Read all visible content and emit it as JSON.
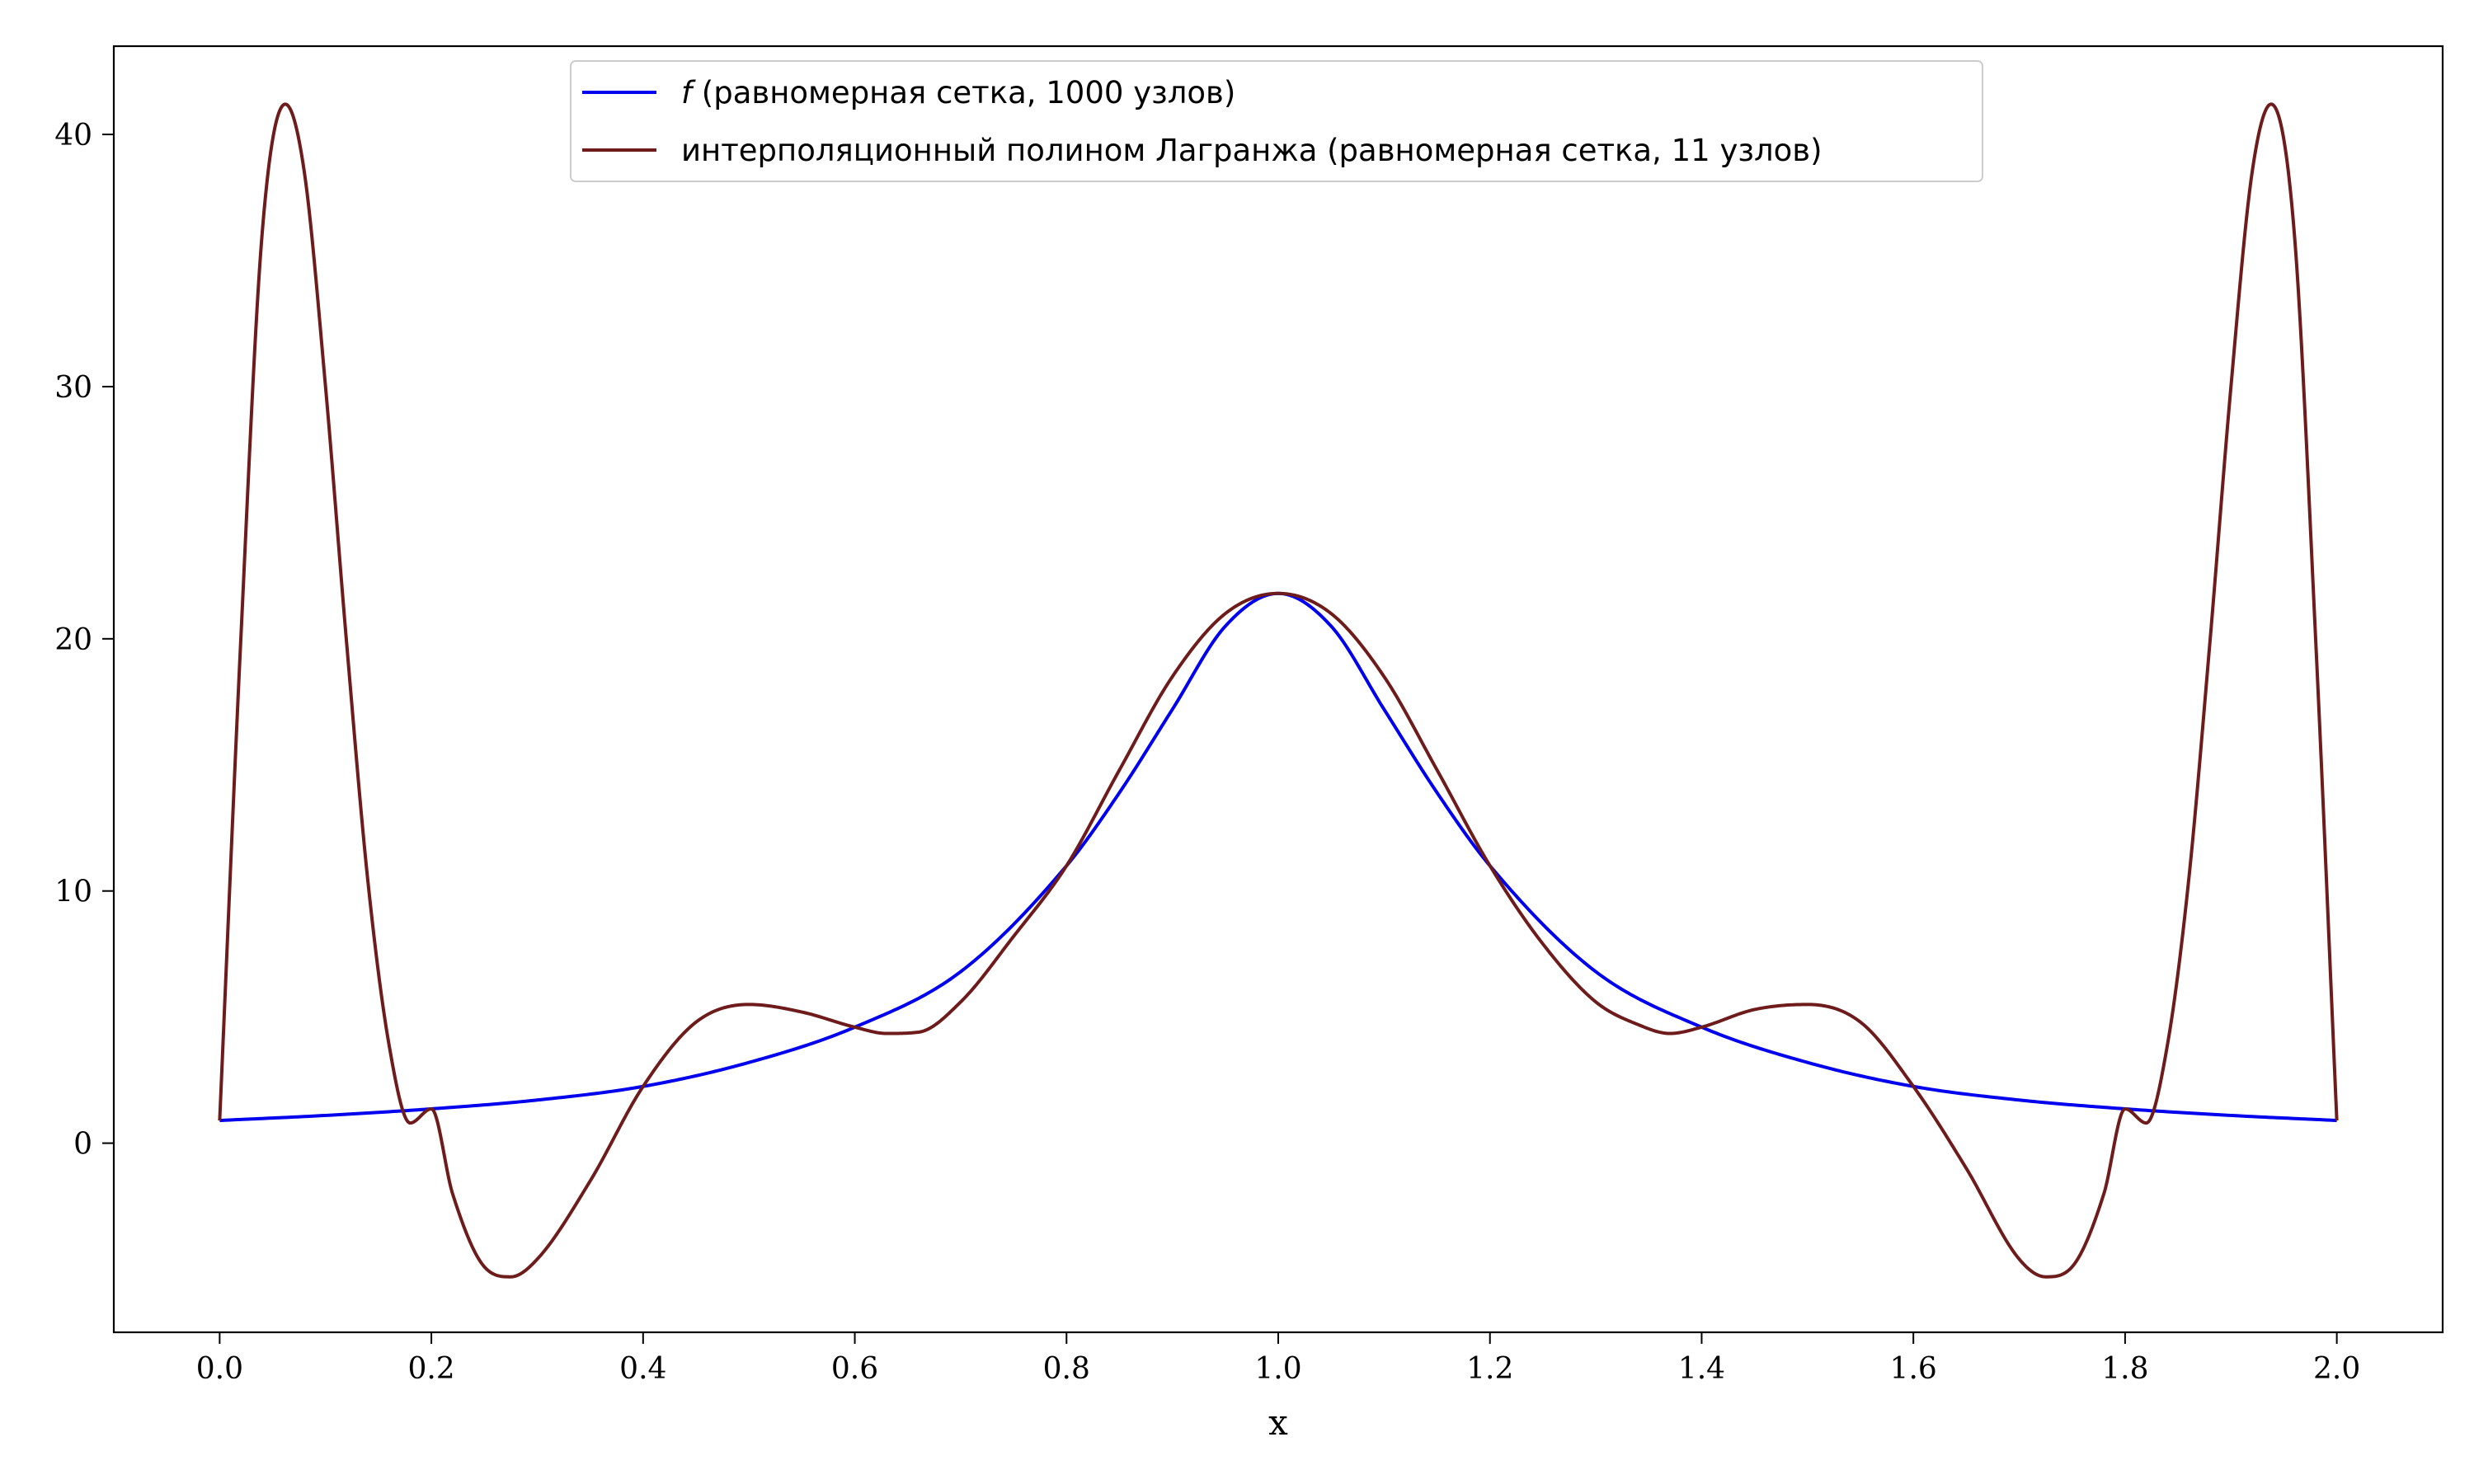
{
  "chart_data": {
    "type": "line",
    "title": "",
    "xlabel": "x",
    "ylabel": "",
    "xlim": [
      -0.1,
      2.1
    ],
    "ylim": [
      -7.5,
      43.5
    ],
    "xticks": [
      0.0,
      0.2,
      0.4,
      0.6,
      0.8,
      1.0,
      1.2,
      1.4,
      1.6,
      1.8,
      2.0
    ],
    "xtick_labels": [
      "0.0",
      "0.2",
      "0.4",
      "0.6",
      "0.8",
      "1.0",
      "1.2",
      "1.4",
      "1.6",
      "1.8",
      "2.0"
    ],
    "yticks": [
      0,
      10,
      20,
      30,
      40
    ],
    "ytick_labels": [
      "0",
      "10",
      "20",
      "30",
      "40"
    ],
    "grid": false,
    "legend_position": "top-center",
    "series": [
      {
        "name": "f (равномерная сетка, 1000 узлов)",
        "legend_symbol": "f",
        "legend_rest": " (равномерная сетка, 1000 узлов)",
        "color": "#0000ee",
        "x": [
          0.0,
          0.1,
          0.2,
          0.3,
          0.4,
          0.5,
          0.6,
          0.7,
          0.8,
          0.85,
          0.9,
          0.95,
          1.0,
          1.05,
          1.1,
          1.15,
          1.2,
          1.3,
          1.4,
          1.5,
          1.6,
          1.7,
          1.8,
          1.9,
          2.0
        ],
        "y": [
          0.9,
          1.1,
          1.36,
          1.71,
          2.25,
          3.2,
          4.6,
          6.8,
          11.0,
          13.9,
          17.2,
          20.5,
          21.8,
          20.5,
          17.2,
          13.9,
          11.0,
          6.8,
          4.6,
          3.2,
          2.25,
          1.71,
          1.36,
          1.1,
          0.9
        ]
      },
      {
        "name": "интерполяционный полином Лагранжа (равномерная сетка, 11 узлов)",
        "color": "#6e1b1b",
        "x": [
          0.0,
          0.02,
          0.04,
          0.062,
          0.08,
          0.1,
          0.12,
          0.14,
          0.16,
          0.18,
          0.2,
          0.22,
          0.25,
          0.275,
          0.3,
          0.35,
          0.4,
          0.45,
          0.5,
          0.55,
          0.6,
          0.63,
          0.66,
          0.7,
          0.75,
          0.8,
          0.85,
          0.9,
          0.95,
          1.0,
          1.05,
          1.1,
          1.15,
          1.2,
          1.25,
          1.3,
          1.34,
          1.37,
          1.4,
          1.45,
          1.5,
          1.55,
          1.6,
          1.65,
          1.7,
          1.725,
          1.75,
          1.78,
          1.8,
          1.82,
          1.84,
          1.86,
          1.88,
          1.9,
          1.92,
          1.938,
          1.96,
          1.98,
          2.0
        ],
        "y": [
          0.9,
          20.0,
          36.0,
          41.2,
          38.5,
          30.0,
          19.8,
          10.4,
          3.9,
          0.8,
          1.36,
          -2.0,
          -4.9,
          -5.3,
          -4.6,
          -1.5,
          2.25,
          4.8,
          5.5,
          5.2,
          4.6,
          4.35,
          4.4,
          5.6,
          8.2,
          11.0,
          14.8,
          18.5,
          21.0,
          21.8,
          21.0,
          18.5,
          14.8,
          11.0,
          7.9,
          5.6,
          4.7,
          4.35,
          4.6,
          5.3,
          5.5,
          4.8,
          2.25,
          -1.0,
          -4.6,
          -5.3,
          -4.9,
          -2.0,
          1.36,
          0.8,
          3.9,
          10.4,
          19.8,
          30.0,
          38.5,
          41.2,
          36.0,
          20.0,
          0.9
        ]
      }
    ]
  }
}
